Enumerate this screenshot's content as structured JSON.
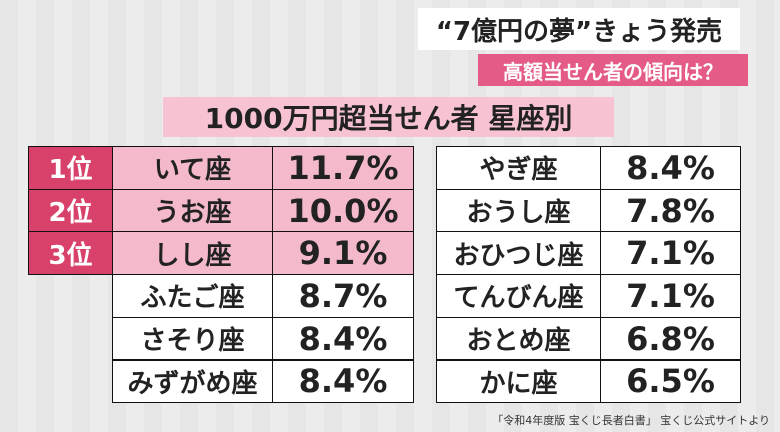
{
  "header": {
    "title": "“7億円の夢”きょう発売",
    "subtitle": "高額当せん者の傾向は？"
  },
  "table": {
    "title": "1000万円超当せん者 星座別",
    "ranks": [
      "1位",
      "2位",
      "3位"
    ],
    "left": [
      [
        "いて座",
        "11.7%"
      ],
      [
        "うお座",
        "10.0%"
      ],
      [
        "しし座",
        "9.1%"
      ],
      [
        "ふたご座",
        "8.7%"
      ],
      [
        "さそり座",
        "8.4%"
      ],
      [
        "みずがめ座",
        "8.4%"
      ]
    ],
    "right": [
      [
        "やぎ座",
        "8.4%"
      ],
      [
        "おうし座",
        "7.8%"
      ],
      [
        "おひつじ座",
        "7.1%"
      ],
      [
        "てんびん座",
        "7.1%"
      ],
      [
        "おとめ座",
        "6.8%"
      ],
      [
        "かに座",
        "6.5%"
      ]
    ]
  },
  "source": "「令和4年度版 宝くじ長者白書」 宝くじ公式サイトより"
}
